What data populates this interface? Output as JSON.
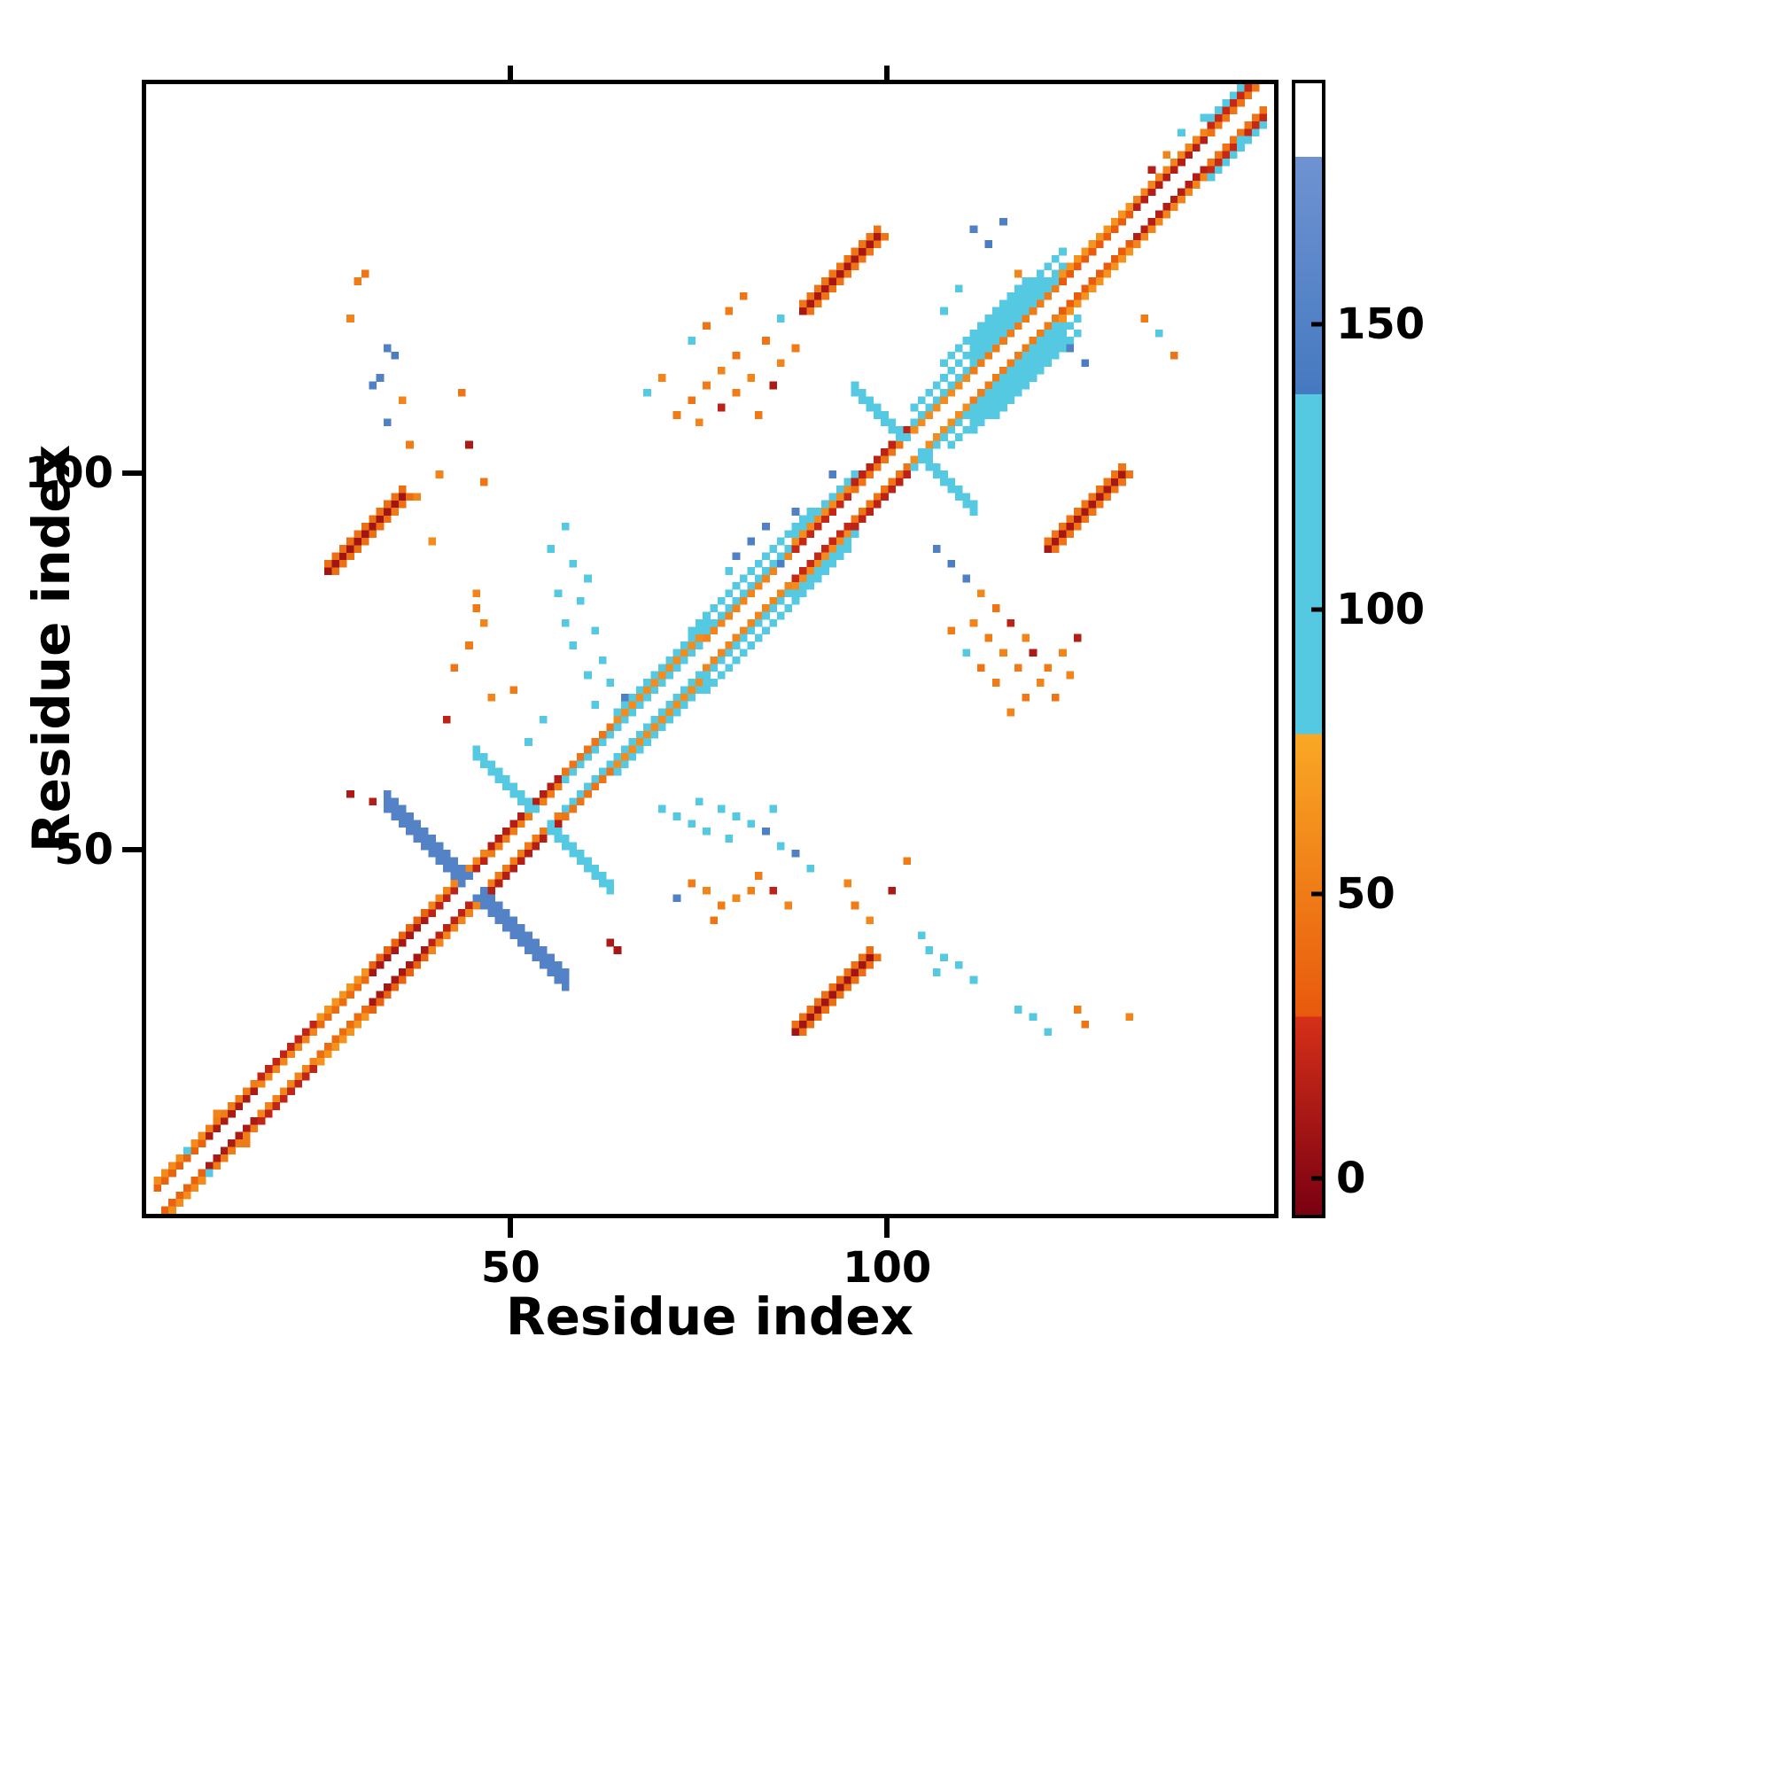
{
  "figure": {
    "background": "#ffffff",
    "axis_color": "#000000"
  },
  "chart_data": {
    "type": "heatmap",
    "title": "",
    "xlabel": "Residue index",
    "ylabel": "Residue index",
    "x_range": [
      1,
      152
    ],
    "y_range": [
      1,
      152
    ],
    "x_ticks": [
      50,
      100
    ],
    "y_ticks": [
      50,
      100
    ],
    "grid": false,
    "legend": "colorbar-right",
    "colorbar": {
      "ticks": [
        0,
        50,
        100,
        150
      ],
      "value_range": [
        -7,
        193
      ],
      "bands": [
        {
          "from": -7,
          "to": 28,
          "color_bottom": "#7a0012",
          "color_top": "#d63018"
        },
        {
          "from": 28,
          "to": 78,
          "color_bottom": "#e8590c",
          "color_top": "#f9a825"
        },
        {
          "from": 78,
          "to": 138,
          "color": "#55c8e2"
        },
        {
          "from": 138,
          "to": 180,
          "color_bottom": "#4579c0",
          "color_top": "#6f93d2"
        },
        {
          "from": 180,
          "to": 193,
          "color": "#ffffff"
        }
      ]
    },
    "diag_segments": [
      {
        "from": 2,
        "to": 9,
        "offsets": {
          "2": 35,
          "3": 60
        }
      },
      {
        "from": 9,
        "to": 16,
        "offsets": {
          "2": 12,
          "3": 50
        }
      },
      {
        "from": 16,
        "to": 24,
        "offsets": {
          "2": 55,
          "3": 20
        }
      },
      {
        "from": 24,
        "to": 31,
        "offsets": {
          "2": 40,
          "3": 65
        }
      },
      {
        "from": 31,
        "to": 39,
        "offsets": {
          "2": 10,
          "3": 35
        }
      },
      {
        "from": 39,
        "to": 47,
        "offsets": {
          "2": 18,
          "3": 55
        }
      },
      {
        "from": 47,
        "to": 57,
        "offsets": {
          "2": 50,
          "3": 15
        }
      },
      {
        "from": 57,
        "to": 64,
        "offsets": {
          "2": 95,
          "3": 45
        }
      },
      {
        "from": 64,
        "to": 76,
        "offsets": {
          "2": 105,
          "3": 60,
          "4": 100
        }
      },
      {
        "from": 76,
        "to": 88,
        "offsets": {
          "2": 55,
          "3": 105,
          "5": 112
        }
      },
      {
        "from": 88,
        "to": 96,
        "offsets": {
          "2": 22,
          "3": 60,
          "4": 118
        }
      },
      {
        "from": 96,
        "to": 104,
        "offsets": {
          "2": 45,
          "3": 18
        }
      },
      {
        "from": 104,
        "to": 112,
        "offsets": {
          "2": 60,
          "3": 108
        }
      },
      {
        "from": 112,
        "to": 124,
        "offsets": {
          "2": 50,
          "3": 100,
          "4": 108,
          "6": 112
        }
      },
      {
        "from": 124,
        "to": 134,
        "offsets": {
          "2": 30,
          "3": 65
        }
      },
      {
        "from": 134,
        "to": 144,
        "offsets": {
          "2": 15,
          "3": 55
        }
      },
      {
        "from": 144,
        "to": 151,
        "offsets": {
          "2": 45,
          "3": 22,
          "4": 100
        }
      }
    ],
    "anti_diagonals": [
      {
        "c": 45,
        "half": 12,
        "w": 3,
        "v": 152
      },
      {
        "c": 54,
        "half": 9,
        "w": 2,
        "v": 115
      },
      {
        "c": 104,
        "half": 8,
        "w": 2,
        "v": 100
      }
    ],
    "parallel_bands": [
      {
        "from": 74,
        "to": 90,
        "off": 5,
        "v": 112,
        "both": true
      },
      {
        "from": 104,
        "to": 121,
        "off": 5,
        "v": 108,
        "both": true
      },
      {
        "from": 108,
        "to": 119,
        "off": 7,
        "v": 112,
        "both": true
      }
    ],
    "blobs": [
      {
        "x": 88,
        "y": 25,
        "len": 10,
        "core": 8,
        "fringe": 42
      },
      {
        "x": 25,
        "y": 87,
        "len": 10,
        "core": 8,
        "fringe": 42
      },
      {
        "x": 89,
        "y": 122,
        "len": 10,
        "core": 10,
        "fringe": 45
      },
      {
        "x": 122,
        "y": 90,
        "len": 10,
        "core": 10,
        "fringe": 45
      }
    ],
    "points": [
      [
        29,
        126,
        50
      ],
      [
        30,
        127,
        45
      ],
      [
        28,
        121,
        55
      ],
      [
        33,
        117,
        150
      ],
      [
        34,
        116,
        145
      ],
      [
        32,
        113,
        150
      ],
      [
        31,
        112,
        148
      ],
      [
        35,
        110,
        55
      ],
      [
        33,
        107,
        150
      ],
      [
        36,
        104,
        50
      ],
      [
        43,
        111,
        45
      ],
      [
        44,
        104,
        12
      ],
      [
        40,
        100,
        55
      ],
      [
        46,
        99,
        45
      ],
      [
        39,
        91,
        60
      ],
      [
        45,
        84,
        55
      ],
      [
        45,
        82,
        48
      ],
      [
        46,
        80,
        55
      ],
      [
        44,
        77,
        50
      ],
      [
        42,
        74,
        45
      ],
      [
        47,
        70,
        55
      ],
      [
        50,
        71,
        50
      ],
      [
        41,
        67,
        18
      ],
      [
        28,
        57,
        12
      ],
      [
        31,
        56,
        15
      ],
      [
        34,
        95,
        50
      ],
      [
        37,
        97,
        55
      ],
      [
        57,
        93,
        130
      ],
      [
        55,
        90,
        100
      ],
      [
        58,
        88,
        105
      ],
      [
        60,
        86,
        100
      ],
      [
        56,
        84,
        105
      ],
      [
        59,
        83,
        110
      ],
      [
        57,
        80,
        100
      ],
      [
        61,
        79,
        105
      ],
      [
        58,
        77,
        100
      ],
      [
        62,
        75,
        110
      ],
      [
        60,
        73,
        105
      ],
      [
        63,
        72,
        100
      ],
      [
        65,
        70,
        148
      ],
      [
        61,
        69,
        100
      ],
      [
        52,
        64,
        100
      ],
      [
        54,
        67,
        105
      ],
      [
        63,
        37,
        12
      ],
      [
        64,
        36,
        10
      ],
      [
        6,
        9,
        100
      ],
      [
        9,
        6,
        105
      ],
      [
        14,
        10,
        50
      ],
      [
        10,
        14,
        55
      ],
      [
        70,
        55,
        115
      ],
      [
        72,
        54,
        110
      ],
      [
        74,
        53,
        112
      ],
      [
        75,
        56,
        110
      ],
      [
        76,
        52,
        105
      ],
      [
        78,
        55,
        110
      ],
      [
        79,
        51,
        112
      ],
      [
        80,
        54,
        108
      ],
      [
        82,
        53,
        105
      ],
      [
        84,
        52,
        148
      ],
      [
        85,
        55,
        110
      ],
      [
        86,
        50,
        112
      ],
      [
        88,
        49,
        150
      ],
      [
        90,
        47,
        110
      ],
      [
        72,
        43,
        150
      ],
      [
        74,
        45,
        50
      ],
      [
        76,
        44,
        55
      ],
      [
        78,
        42,
        50
      ],
      [
        77,
        40,
        45
      ],
      [
        80,
        43,
        58
      ],
      [
        82,
        44,
        52
      ],
      [
        83,
        46,
        50
      ],
      [
        85,
        44,
        18
      ],
      [
        87,
        42,
        55
      ],
      [
        95,
        45,
        55
      ],
      [
        96,
        42,
        50
      ],
      [
        98,
        40,
        58
      ],
      [
        103,
        48,
        50
      ],
      [
        101,
        44,
        12
      ],
      [
        105,
        38,
        105
      ],
      [
        106,
        36,
        100
      ],
      [
        108,
        35,
        108
      ],
      [
        107,
        33,
        105
      ],
      [
        110,
        34,
        100
      ],
      [
        112,
        32,
        105
      ],
      [
        118,
        28,
        100
      ],
      [
        120,
        27,
        105
      ],
      [
        122,
        25,
        110
      ],
      [
        126,
        28,
        50
      ],
      [
        127,
        26,
        45
      ],
      [
        133,
        27,
        55
      ],
      [
        72,
        108,
        50
      ],
      [
        74,
        110,
        45
      ],
      [
        75,
        107,
        55
      ],
      [
        76,
        112,
        50
      ],
      [
        78,
        109,
        18
      ],
      [
        78,
        114,
        55
      ],
      [
        80,
        111,
        50
      ],
      [
        80,
        116,
        45
      ],
      [
        82,
        113,
        55
      ],
      [
        83,
        108,
        48
      ],
      [
        84,
        118,
        45
      ],
      [
        85,
        112,
        12
      ],
      [
        86,
        115,
        55
      ],
      [
        88,
        117,
        50
      ],
      [
        76,
        120,
        45
      ],
      [
        74,
        118,
        100
      ],
      [
        86,
        121,
        105
      ],
      [
        79,
        122,
        50
      ],
      [
        81,
        124,
        45
      ],
      [
        70,
        113,
        55
      ],
      [
        68,
        111,
        100
      ],
      [
        80,
        89,
        150
      ],
      [
        82,
        91,
        148
      ],
      [
        84,
        93,
        150
      ],
      [
        86,
        88,
        145
      ],
      [
        88,
        95,
        150
      ],
      [
        79,
        87,
        100
      ],
      [
        93,
        100,
        148
      ],
      [
        112,
        133,
        150
      ],
      [
        114,
        131,
        145
      ],
      [
        116,
        134,
        148
      ],
      [
        125,
        117,
        150
      ],
      [
        127,
        115,
        145
      ],
      [
        118,
        127,
        55
      ],
      [
        135,
        121,
        50
      ],
      [
        137,
        119,
        100
      ],
      [
        110,
        125,
        105
      ],
      [
        108,
        122,
        100
      ],
      [
        139,
        116,
        45
      ],
      [
        107,
        90,
        150
      ],
      [
        109,
        88,
        145
      ],
      [
        111,
        86,
        148
      ],
      [
        113,
        84,
        58
      ],
      [
        112,
        80,
        55
      ],
      [
        114,
        78,
        50
      ],
      [
        115,
        82,
        45
      ],
      [
        116,
        76,
        55
      ],
      [
        117,
        80,
        18
      ],
      [
        118,
        74,
        50
      ],
      [
        119,
        78,
        55
      ],
      [
        120,
        76,
        12
      ],
      [
        121,
        72,
        55
      ],
      [
        122,
        74,
        50
      ],
      [
        123,
        70,
        45
      ],
      [
        125,
        73,
        55
      ],
      [
        113,
        74,
        45
      ],
      [
        109,
        79,
        50
      ],
      [
        111,
        76,
        100
      ],
      [
        124,
        76,
        55
      ],
      [
        126,
        78,
        15
      ],
      [
        115,
        72,
        50
      ],
      [
        117,
        68,
        55
      ],
      [
        119,
        70,
        48
      ],
      [
        140,
        146,
        100
      ],
      [
        143,
        148,
        105
      ],
      [
        146,
        142,
        100
      ],
      [
        148,
        145,
        102
      ],
      [
        136,
        141,
        15
      ],
      [
        138,
        143,
        55
      ]
    ]
  }
}
